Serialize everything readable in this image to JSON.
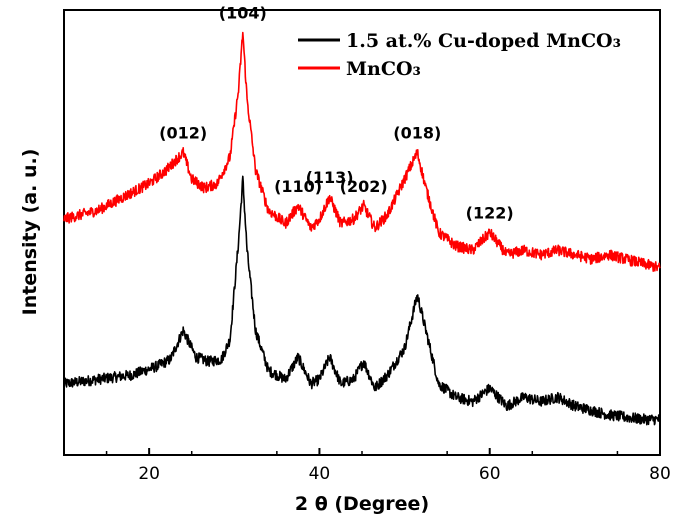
{
  "chart_data": {
    "type": "line",
    "xlabel": "2 θ (Degree)",
    "ylabel": "Intensity (a. u.)",
    "xlim": [
      10,
      80
    ],
    "ylim": [
      0,
      100
    ],
    "x_ticks": [
      20,
      40,
      60,
      80
    ],
    "y_ticks_labeled": false,
    "grid": false,
    "legend_position": "top-right",
    "colors": {
      "series_0": "#000000",
      "series_1": "#ff0000"
    },
    "series": [
      {
        "name": "1.5 at.% Cu-doped MnCO₃",
        "color": "#000000",
        "x": [
          10,
          14,
          18,
          21,
          22.5,
          24,
          25.5,
          27,
          28.5,
          29.5,
          30.5,
          31,
          31.5,
          32.5,
          34,
          36,
          37.5,
          39,
          40,
          41.2,
          42.5,
          44,
          45.2,
          46.5,
          48,
          50,
          51.5,
          52.5,
          54,
          56,
          58,
          60,
          62,
          64,
          66,
          68,
          70,
          74,
          78,
          80
        ],
        "values": [
          16,
          17,
          18,
          20,
          21.5,
          28,
          22,
          21,
          21.5,
          26,
          48,
          62,
          46,
          28,
          19,
          17,
          22,
          16,
          17,
          22,
          16,
          17,
          21,
          15,
          18,
          24,
          36,
          28,
          16,
          13,
          12,
          15,
          11,
          13,
          12,
          13,
          11,
          9,
          8,
          8
        ]
      },
      {
        "name": "MnCO₃",
        "color": "#ff0000",
        "x": [
          10,
          12,
          14,
          16,
          18,
          20,
          22,
          24,
          25,
          26.5,
          28,
          29.5,
          30.5,
          31,
          31.5,
          32.5,
          34,
          36,
          37.5,
          39,
          40,
          41.2,
          42.5,
          44,
          45.2,
          46.5,
          48,
          50,
          51.5,
          52.5,
          54,
          56,
          58,
          60,
          62,
          64,
          66,
          68,
          70,
          72,
          74,
          76,
          78,
          80
        ],
        "values": [
          53,
          54,
          55,
          57,
          59,
          61,
          64,
          68,
          62,
          60,
          61,
          67,
          82,
          95,
          80,
          64,
          55,
          52,
          56,
          51,
          53,
          58,
          52,
          53,
          56,
          51,
          54,
          62,
          68,
          60,
          50,
          47,
          46,
          50,
          45,
          46,
          45,
          46,
          45,
          44,
          45,
          44,
          43,
          42
        ]
      }
    ],
    "annotations": [
      {
        "text": "(012)",
        "x": 24,
        "series": "MnCO₃"
      },
      {
        "text": "(104)",
        "x": 31,
        "series": "MnCO₃"
      },
      {
        "text": "(110)",
        "x": 37.5,
        "series": "MnCO₃"
      },
      {
        "text": "(113)",
        "x": 41.2,
        "series": "MnCO₃"
      },
      {
        "text": "(202)",
        "x": 45.2,
        "series": "MnCO₃"
      },
      {
        "text": "(018)",
        "x": 51.5,
        "series": "MnCO₃"
      },
      {
        "text": "(122)",
        "x": 60,
        "series": "MnCO₃"
      }
    ]
  }
}
